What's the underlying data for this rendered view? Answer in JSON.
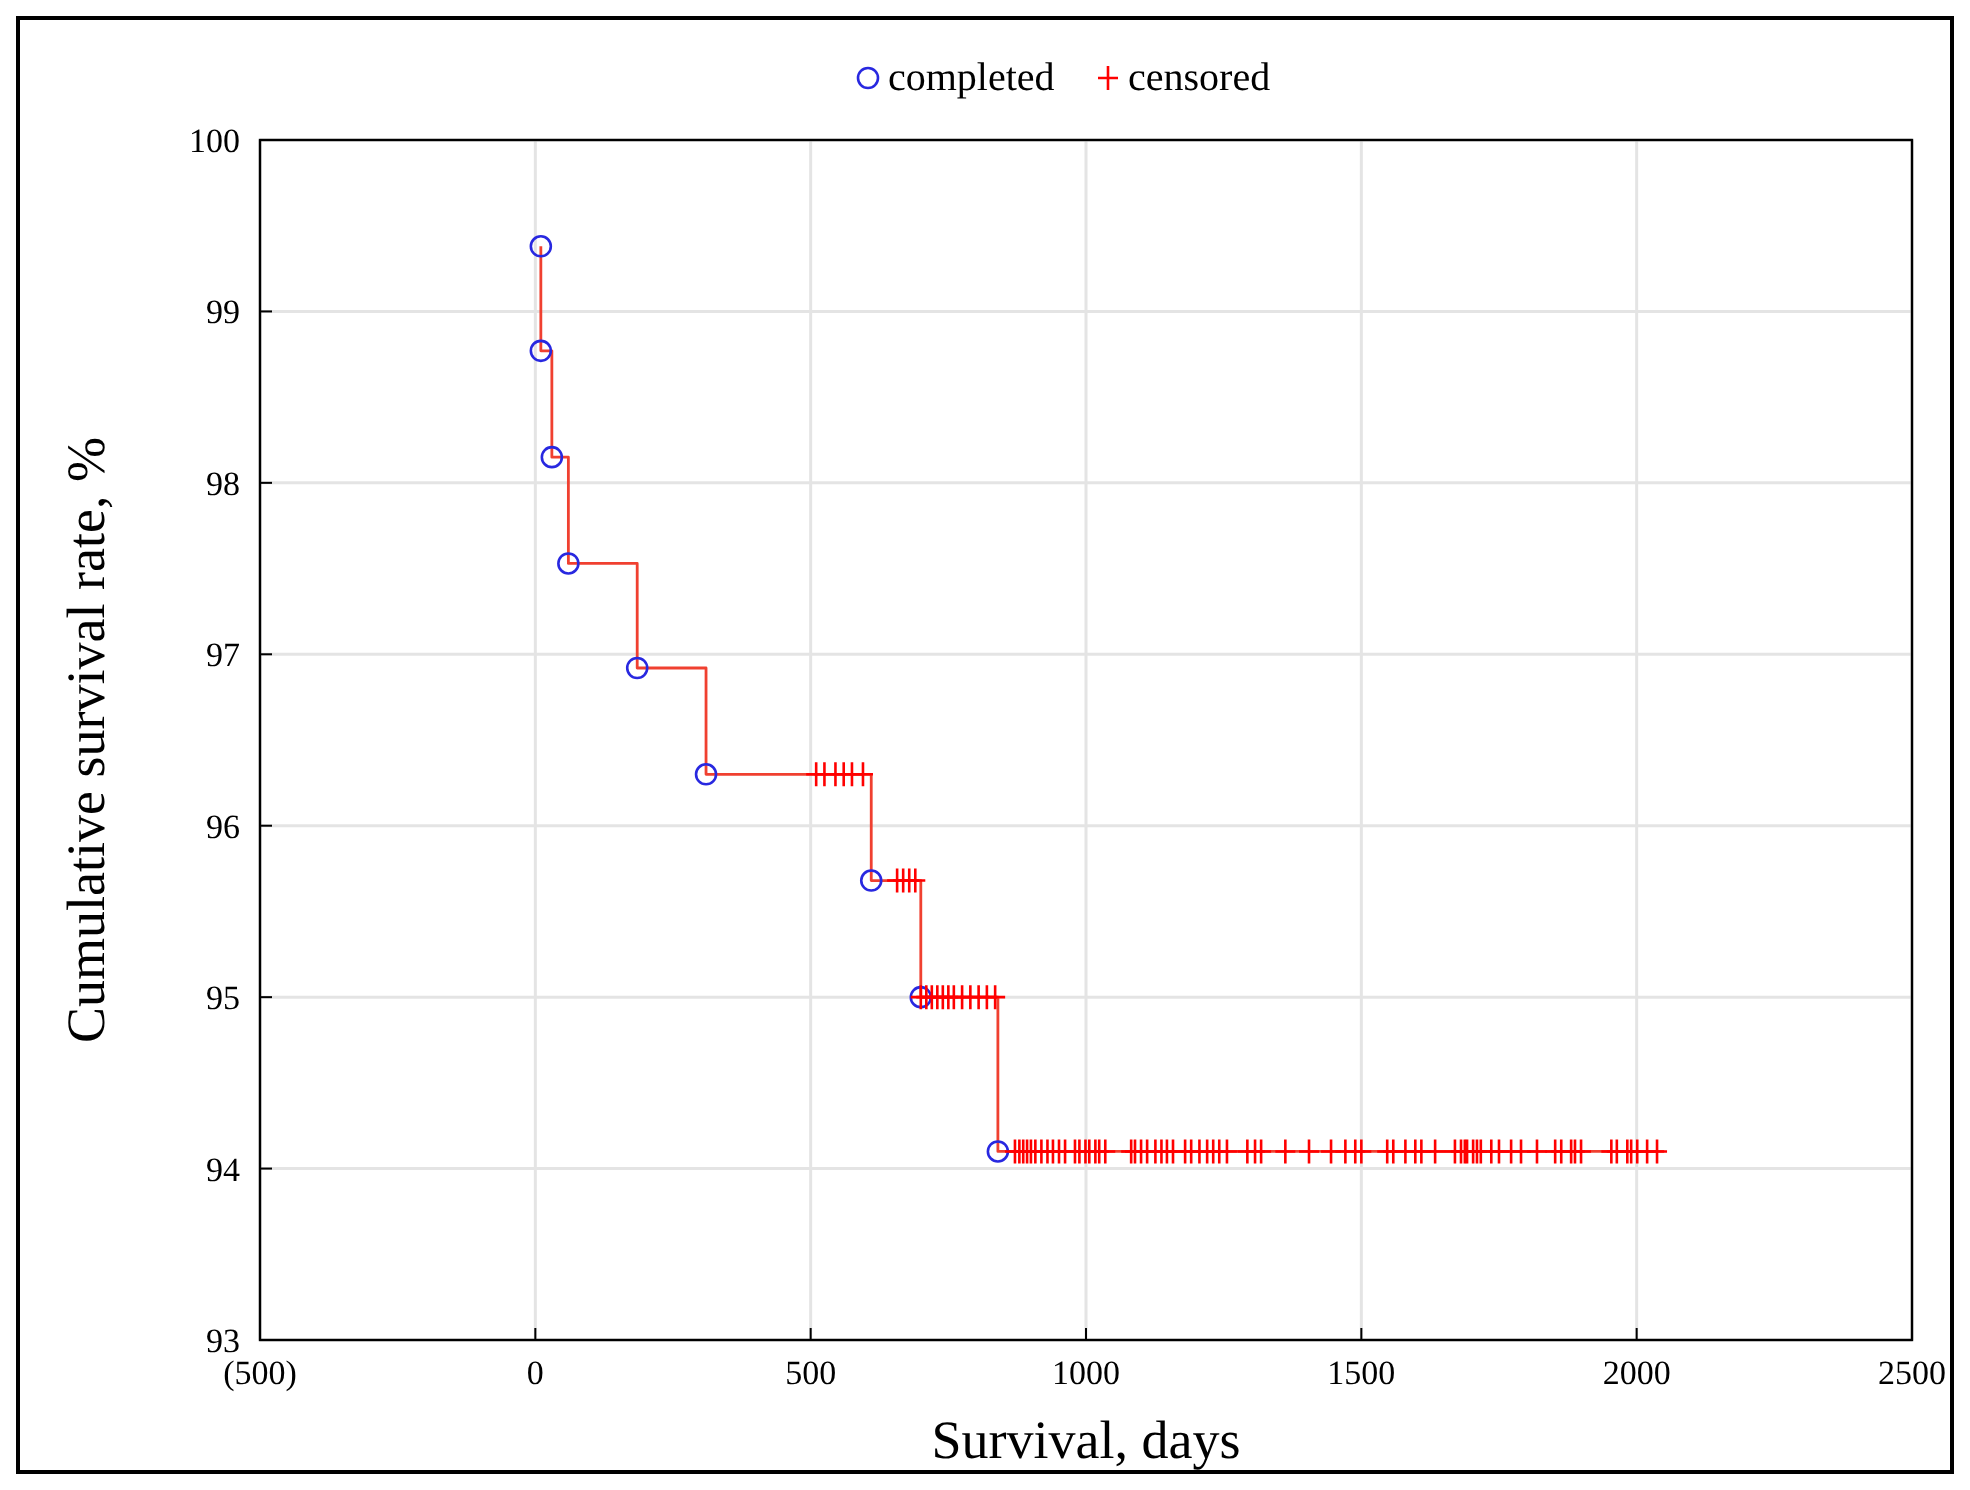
{
  "chart_data": {
    "type": "scatter",
    "xlabel": "Survival, days",
    "ylabel": "Cumulative survival rate, %",
    "xlim": [
      -500,
      2500
    ],
    "ylim": [
      93,
      100
    ],
    "xticks": [
      {
        "value": -500,
        "label": "(500)"
      },
      0,
      500,
      1000,
      1500,
      2000,
      2500
    ],
    "yticks": [
      93,
      94,
      95,
      96,
      97,
      98,
      99,
      100
    ],
    "grid": true,
    "legend": "top",
    "series": [
      {
        "type": "step",
        "color": "#f04030",
        "marker": "none",
        "x": [
          10,
          10,
          30,
          60,
          185,
          310,
          610,
          700,
          840,
          2050
        ],
        "values": [
          99.38,
          98.77,
          98.15,
          97.53,
          96.92,
          96.3,
          95.68,
          95.0,
          94.1,
          94.1
        ]
      },
      {
        "name": "completed",
        "color": "#2828e0",
        "marker": "circle",
        "x": [
          10,
          10,
          30,
          60,
          185,
          310,
          610,
          700,
          840
        ],
        "values": [
          99.38,
          98.77,
          98.15,
          97.53,
          96.92,
          96.3,
          95.68,
          95.0,
          94.1
        ]
      },
      {
        "name": "censored",
        "color": "#ff0000",
        "marker": "cross",
        "x": [
          510,
          525,
          545,
          560,
          575,
          595,
          657,
          668,
          679,
          690,
          700,
          710,
          720,
          730,
          740,
          750,
          760,
          775,
          790,
          805,
          820,
          835,
          871,
          879,
          886,
          893,
          900,
          908,
          919,
          930,
          940,
          951,
          962,
          980,
          988,
          999,
          1006,
          1017,
          1024,
          1035,
          1082,
          1089,
          1100,
          1111,
          1126,
          1137,
          1147,
          1158,
          1180,
          1191,
          1206,
          1220,
          1231,
          1242,
          1256,
          1293,
          1307,
          1318,
          1362,
          1405,
          1445,
          1471,
          1489,
          1500,
          1547,
          1558,
          1580,
          1598,
          1609,
          1634,
          1670,
          1681,
          1688,
          1692,
          1703,
          1710,
          1717,
          1736,
          1750,
          1772,
          1790,
          1819,
          1852,
          1863,
          1881,
          1888,
          1899,
          1954,
          1964,
          1983,
          1990,
          2001,
          2019,
          2037
        ],
        "values": [
          96.3,
          96.3,
          96.3,
          96.3,
          96.3,
          96.3,
          95.68,
          95.68,
          95.68,
          95.68,
          95.0,
          95.0,
          95.0,
          95.0,
          95.0,
          95.0,
          95.0,
          95.0,
          95.0,
          95.0,
          95.0,
          95.0,
          94.1,
          94.1,
          94.1,
          94.1,
          94.1,
          94.1,
          94.1,
          94.1,
          94.1,
          94.1,
          94.1,
          94.1,
          94.1,
          94.1,
          94.1,
          94.1,
          94.1,
          94.1,
          94.1,
          94.1,
          94.1,
          94.1,
          94.1,
          94.1,
          94.1,
          94.1,
          94.1,
          94.1,
          94.1,
          94.1,
          94.1,
          94.1,
          94.1,
          94.1,
          94.1,
          94.1,
          94.1,
          94.1,
          94.1,
          94.1,
          94.1,
          94.1,
          94.1,
          94.1,
          94.1,
          94.1,
          94.1,
          94.1,
          94.1,
          94.1,
          94.1,
          94.1,
          94.1,
          94.1,
          94.1,
          94.1,
          94.1,
          94.1,
          94.1,
          94.1,
          94.1,
          94.1,
          94.1,
          94.1,
          94.1,
          94.1,
          94.1,
          94.1,
          94.1,
          94.1,
          94.1,
          94.1
        ]
      }
    ]
  }
}
